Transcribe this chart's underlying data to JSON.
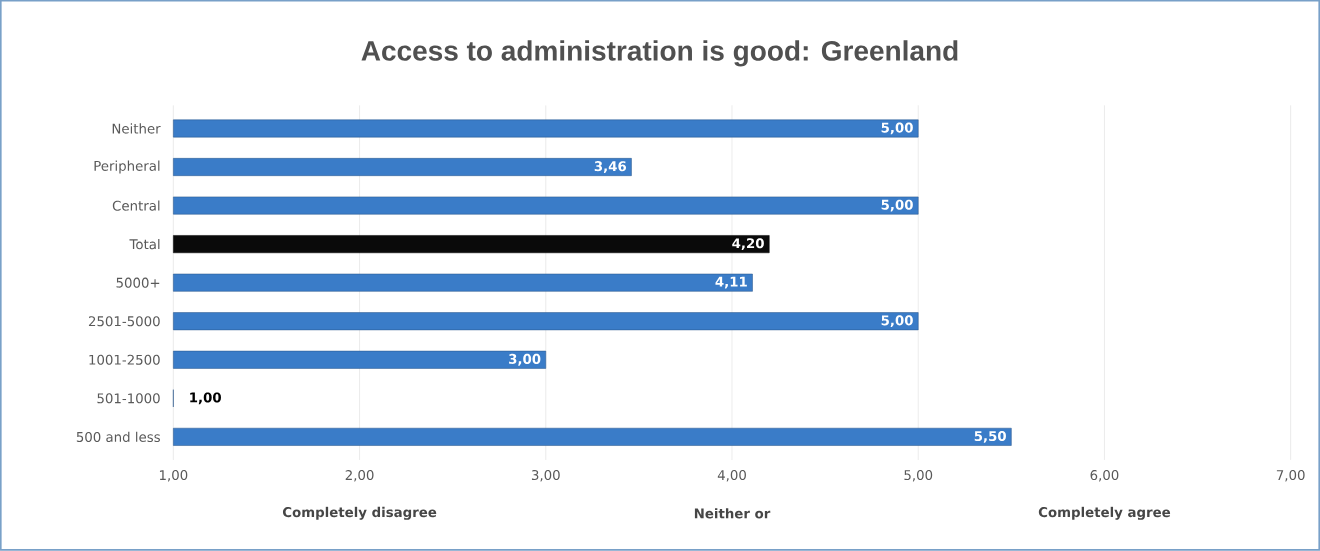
{
  "chart_data": {
    "type": "bar",
    "orientation": "horizontal",
    "title": "Access to administration is good: Greenland",
    "categories": [
      "Neither",
      "Peripheral",
      "Central",
      "Total",
      "5000+",
      "2501-5000",
      "1001-2500",
      "501-1000",
      "500 and less"
    ],
    "values": [
      5.0,
      3.46,
      5.0,
      4.2,
      4.11,
      5.0,
      3.0,
      1.0,
      5.5
    ],
    "value_labels": [
      "5,00",
      "3,46",
      "5,00",
      "4,20",
      "4,11",
      "5,00",
      "3,00",
      "1,00",
      "5,50"
    ],
    "colors": [
      "#3a7cc8",
      "#3a7cc8",
      "#3a7cc8",
      "#0a0a0a",
      "#3a7cc8",
      "#3a7cc8",
      "#3a7cc8",
      "#3a7cc8",
      "#3a7cc8"
    ],
    "xlim": [
      1,
      7
    ],
    "xticks": [
      {
        "value": 1,
        "label": "1,00"
      },
      {
        "value": 2,
        "label": "2,00"
      },
      {
        "value": 3,
        "label": "3,00"
      },
      {
        "value": 4,
        "label": "4,00"
      },
      {
        "value": 5,
        "label": "5,00"
      },
      {
        "value": 6,
        "label": "6,00"
      },
      {
        "value": 7,
        "label": "7,00"
      }
    ],
    "annotations": [
      "Completely disagree",
      "Neither or",
      "Completely agree"
    ],
    "grid": "x"
  }
}
